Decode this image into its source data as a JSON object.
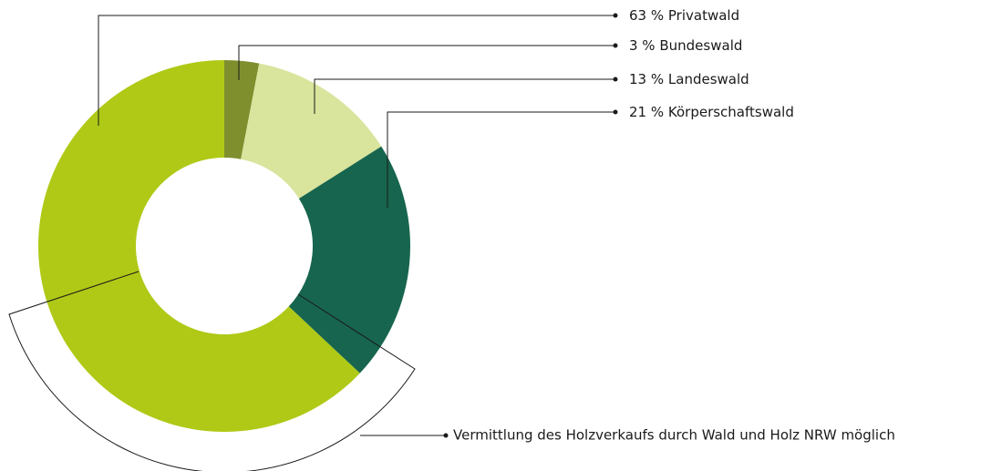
{
  "chart_data": {
    "type": "pie",
    "categories": [
      "Bundeswald",
      "Landeswald",
      "Körperschaftswald",
      "Privatwald"
    ],
    "values": [
      3,
      13,
      21,
      63
    ],
    "value_labels": [
      "3 %",
      "13 %",
      "21 %",
      "63 %"
    ],
    "colors": [
      "#7f8f2e",
      "#d9e49c",
      "#17654e",
      "#afc916"
    ],
    "annotation": "Vermittlung des Holzverkaufs durch Wald und Holz NRW möglich"
  }
}
